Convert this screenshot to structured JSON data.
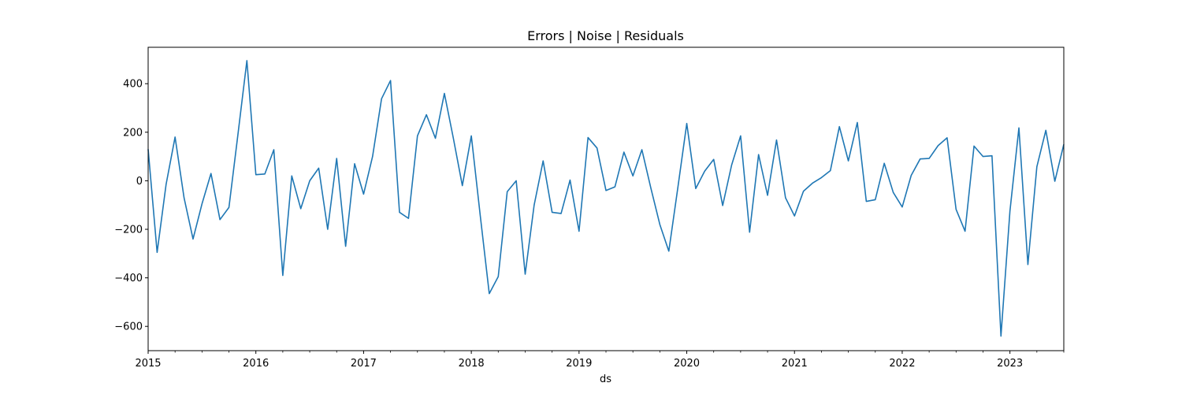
{
  "chart_data": {
    "type": "line",
    "title": "Errors | Noise | Residuals",
    "xlabel": "ds",
    "ylabel": "",
    "x_ticks": [
      "2015",
      "2016",
      "2017",
      "2018",
      "2019",
      "2020",
      "2021",
      "2022",
      "2023"
    ],
    "y_ticks": [
      -600,
      -400,
      -200,
      0,
      200,
      400
    ],
    "xlim": [
      "2015-01",
      "2023-07"
    ],
    "ylim": [
      -700,
      550
    ],
    "grid": false,
    "line_color": "#1f77b4",
    "series": [
      {
        "name": "",
        "x": [
          "2015-01",
          "2015-02",
          "2015-03",
          "2015-04",
          "2015-05",
          "2015-06",
          "2015-07",
          "2015-08",
          "2015-09",
          "2015-10",
          "2015-11",
          "2015-12",
          "2016-01",
          "2016-02",
          "2016-03",
          "2016-04",
          "2016-05",
          "2016-06",
          "2016-07",
          "2016-08",
          "2016-09",
          "2016-10",
          "2016-11",
          "2016-12",
          "2017-01",
          "2017-02",
          "2017-03",
          "2017-04",
          "2017-05",
          "2017-06",
          "2017-07",
          "2017-08",
          "2017-09",
          "2017-10",
          "2017-11",
          "2017-12",
          "2018-01",
          "2018-02",
          "2018-03",
          "2018-04",
          "2018-05",
          "2018-06",
          "2018-07",
          "2018-08",
          "2018-09",
          "2018-10",
          "2018-11",
          "2018-12",
          "2019-01",
          "2019-02",
          "2019-03",
          "2019-04",
          "2019-05",
          "2019-06",
          "2019-07",
          "2019-08",
          "2019-09",
          "2019-10",
          "2019-11",
          "2019-12",
          "2020-01",
          "2020-02",
          "2020-03",
          "2020-04",
          "2020-05",
          "2020-06",
          "2020-07",
          "2020-08",
          "2020-09",
          "2020-10",
          "2020-11",
          "2020-12",
          "2021-01",
          "2021-02",
          "2021-03",
          "2021-04",
          "2021-05",
          "2021-06",
          "2021-07",
          "2021-08",
          "2021-09",
          "2021-10",
          "2021-11",
          "2021-12",
          "2022-01",
          "2022-02",
          "2022-03",
          "2022-04",
          "2022-05",
          "2022-06",
          "2022-07",
          "2022-08",
          "2022-09",
          "2022-10",
          "2022-11",
          "2022-12",
          "2023-01",
          "2023-02",
          "2023-03",
          "2023-04",
          "2023-05",
          "2023-06",
          "2023-07"
        ],
        "values": [
          130,
          -295,
          -15,
          180,
          -70,
          -240,
          -95,
          30,
          -160,
          -110,
          190,
          495,
          25,
          28,
          128,
          -390,
          20,
          -115,
          0,
          52,
          -200,
          92,
          -270,
          70,
          -55,
          100,
          338,
          413,
          -130,
          -155,
          185,
          272,
          175,
          360,
          175,
          -20,
          185,
          -145,
          -465,
          -395,
          -45,
          0,
          -385,
          -100,
          82,
          -130,
          -135,
          3,
          -208,
          178,
          135,
          -40,
          -25,
          118,
          20,
          128,
          -30,
          -180,
          -290,
          -30,
          236,
          -32,
          40,
          88,
          -102,
          65,
          185,
          -212,
          108,
          -60,
          168,
          -70,
          -145,
          -43,
          -10,
          13,
          42,
          223,
          82,
          240,
          -85,
          -78,
          72,
          -48,
          -108,
          22,
          90,
          92,
          145,
          177,
          -118,
          -208,
          143,
          100,
          103,
          -640,
          -125,
          218,
          -345,
          58,
          208,
          -2,
          150
        ]
      }
    ]
  }
}
